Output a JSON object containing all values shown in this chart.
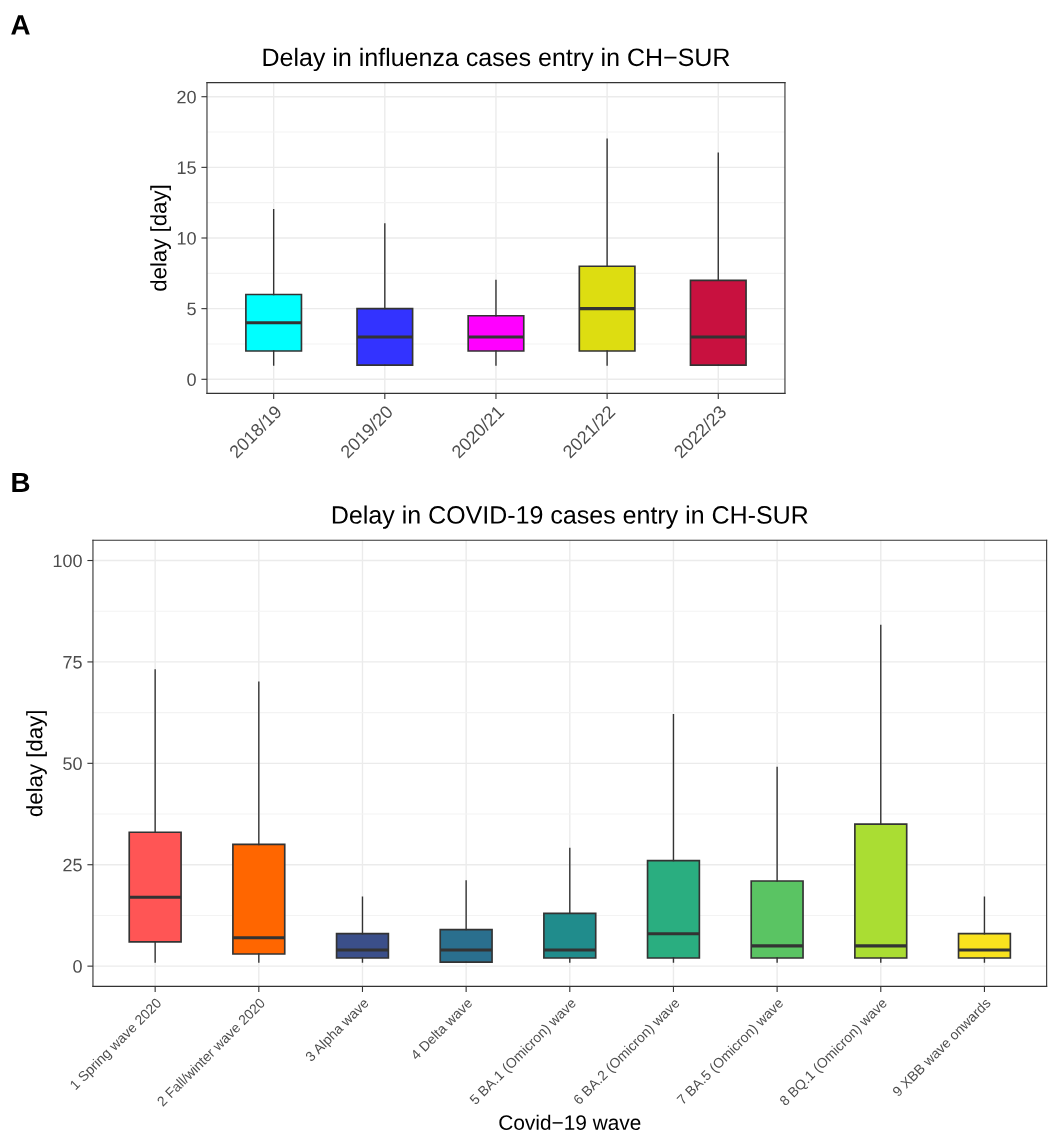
{
  "chart_data": [
    {
      "type": "box",
      "title": "Delay in influenza cases entry in CH−SUR",
      "ylabel": "delay [day]",
      "annotations": [
        "A"
      ],
      "categories": [
        "2018/19",
        "2019/20",
        "2020/21",
        "2021/22",
        "2022/23"
      ],
      "colors": [
        "#00ffff",
        "#3333ff",
        "#ff00ff",
        "#dddd11",
        "#c8113f"
      ],
      "boxes": [
        {
          "low": 1,
          "q1": 2,
          "median": 4,
          "q3": 6,
          "high": 12
        },
        {
          "low": 1,
          "q1": 1,
          "median": 3,
          "q3": 5,
          "high": 11
        },
        {
          "low": 1,
          "q1": 2,
          "median": 3,
          "q3": 4.5,
          "high": 7
        },
        {
          "low": 1,
          "q1": 2,
          "median": 5,
          "q3": 8,
          "high": 17
        },
        {
          "low": 1,
          "q1": 1,
          "median": 3,
          "q3": 7,
          "high": 16
        }
      ],
      "ylim": [
        -1,
        21
      ],
      "yticks": [
        0,
        5,
        10,
        15,
        20
      ],
      "grid": true,
      "legend": false
    },
    {
      "type": "box",
      "title": "Delay in COVID-19 cases entry in CH-SUR",
      "xlabel": "Covid−19 wave",
      "ylabel": "delay [day]",
      "annotations": [
        "B"
      ],
      "categories": [
        "1 Spring wave 2020",
        "2 Fall/winter wave 2020",
        "3 Alpha wave",
        "4 Delta wave",
        "5 BA.1 (Omicron) wave",
        "6 BA.2 (Omicron) wave",
        "7 BA.5 (Omicron) wave",
        "8 BQ.1 (Omicron) wave",
        "9 XBB wave onwards"
      ],
      "colors": [
        "#ff5555",
        "#ff6600",
        "#3b4f8a",
        "#2a6f8e",
        "#208c8c",
        "#2aae80",
        "#5ac463",
        "#aadd33",
        "#f9e21e"
      ],
      "boxes": [
        {
          "low": 1,
          "q1": 6,
          "median": 17,
          "q3": 33,
          "high": 73
        },
        {
          "low": 1,
          "q1": 3,
          "median": 7,
          "q3": 30,
          "high": 70
        },
        {
          "low": 1,
          "q1": 2,
          "median": 4,
          "q3": 8,
          "high": 17
        },
        {
          "low": 1,
          "q1": 1,
          "median": 4,
          "q3": 9,
          "high": 21
        },
        {
          "low": 1,
          "q1": 2,
          "median": 4,
          "q3": 13,
          "high": 29
        },
        {
          "low": 1,
          "q1": 2,
          "median": 8,
          "q3": 26,
          "high": 62
        },
        {
          "low": 1,
          "q1": 2,
          "median": 5,
          "q3": 21,
          "high": 49
        },
        {
          "low": 1,
          "q1": 2,
          "median": 5,
          "q3": 35,
          "high": 84
        },
        {
          "low": 1,
          "q1": 2,
          "median": 4,
          "q3": 8,
          "high": 17
        }
      ],
      "ylim": [
        -5,
        105
      ],
      "yticks": [
        0,
        25,
        50,
        75,
        100
      ],
      "grid": true,
      "legend": false
    }
  ]
}
